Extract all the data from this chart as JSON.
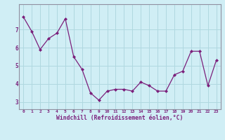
{
  "x": [
    0,
    1,
    2,
    3,
    4,
    5,
    6,
    7,
    8,
    9,
    10,
    11,
    12,
    13,
    14,
    15,
    16,
    17,
    18,
    19,
    20,
    21,
    22,
    23
  ],
  "y": [
    7.7,
    6.9,
    5.9,
    6.5,
    6.8,
    7.6,
    5.5,
    4.8,
    3.5,
    3.1,
    3.6,
    3.7,
    3.7,
    3.6,
    4.1,
    3.9,
    3.6,
    3.6,
    4.5,
    4.7,
    5.8,
    5.8,
    3.9,
    5.3
  ],
  "line_color": "#7B1F7B",
  "marker_color": "#7B1F7B",
  "bg_color": "#d0eef5",
  "grid_color": "#b0d8e0",
  "xlabel": "Windchill (Refroidissement éolien,°C)",
  "xlabel_color": "#7B1F7B",
  "tick_color": "#7B1F7B",
  "ylim": [
    2.6,
    8.4
  ],
  "xlim": [
    -0.5,
    23.5
  ],
  "yticks": [
    3,
    4,
    5,
    6,
    7
  ],
  "xticks": [
    0,
    1,
    2,
    3,
    4,
    5,
    6,
    7,
    8,
    9,
    10,
    11,
    12,
    13,
    14,
    15,
    16,
    17,
    18,
    19,
    20,
    21,
    22,
    23
  ],
  "spine_color": "#9090a0"
}
